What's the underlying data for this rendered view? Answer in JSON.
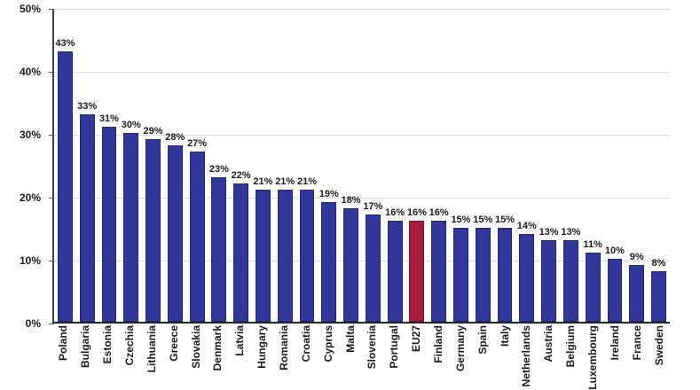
{
  "chart_data": {
    "type": "bar",
    "title": "",
    "xlabel": "",
    "ylabel": "",
    "categories": [
      "Poland",
      "Bulgaria",
      "Estonia",
      "Czechia",
      "Lithuania",
      "Greece",
      "Slovakia",
      "Denmark",
      "Latvia",
      "Hungary",
      "Romania",
      "Croatia",
      "Cyprus",
      "Malta",
      "Slovenia",
      "Portugal",
      "EU27",
      "Finland",
      "Germany",
      "Spain",
      "Italy",
      "Netherlands",
      "Austria",
      "Belgium",
      "Luxembourg",
      "Ireland",
      "France",
      "Sweden"
    ],
    "values": [
      43,
      33,
      31,
      30,
      29,
      28,
      27,
      23,
      22,
      21,
      21,
      21,
      19,
      18,
      17,
      16,
      16,
      16,
      15,
      15,
      15,
      14,
      13,
      13,
      11,
      10,
      9,
      8
    ],
    "value_labels": [
      "43%",
      "33%",
      "31%",
      "30%",
      "29%",
      "28%",
      "27%",
      "23%",
      "22%",
      "21%",
      "21%",
      "21%",
      "19%",
      "18%",
      "17%",
      "16%",
      "16%",
      "16%",
      "15%",
      "15%",
      "15%",
      "14%",
      "13%",
      "13%",
      "11%",
      "10%",
      "9%",
      "8%"
    ],
    "highlight_category": "EU27",
    "bar_color": "#31379b",
    "highlight_color": "#a81c3f",
    "ylim": [
      0,
      50
    ],
    "ytick_values": [
      0,
      10,
      20,
      30,
      40,
      50
    ],
    "ytick_labels": [
      "0%",
      "10%",
      "20%",
      "30%",
      "40%",
      "50%"
    ],
    "grid": "horizontal",
    "legend": "none"
  }
}
